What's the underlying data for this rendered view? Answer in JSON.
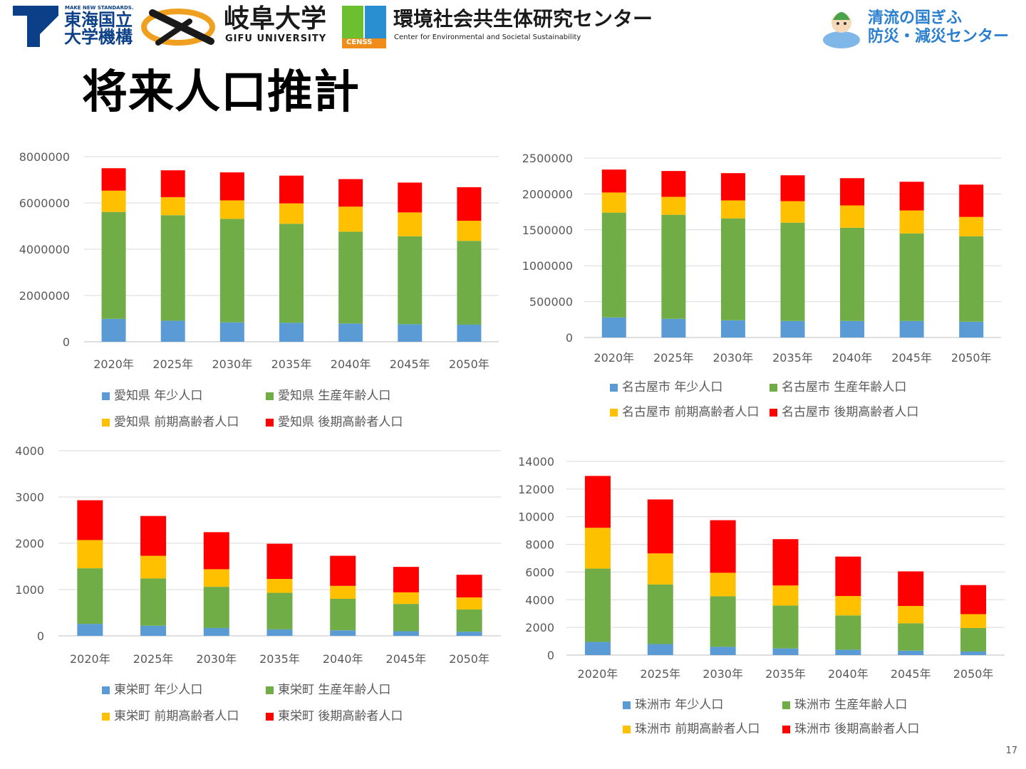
{
  "header": {
    "tokai_small": "MAKE NEW STANDARDS.",
    "tokai_line1": "東海国立",
    "tokai_line2": "大学機構",
    "gifu_jp": "岐阜大学",
    "gifu_en": "GIFU UNIVERSITY",
    "cens_badge": "CENSS",
    "cens_jp": "環境社会共生体研究センター",
    "cens_en": "Center for Environmental and Societal Sustainability",
    "center_line1": "清流の国ぎふ",
    "center_line2": "防災・減災センター"
  },
  "title": "将来人口推計",
  "page_number": "17",
  "colors": {
    "young": "#5B9BD5",
    "working": "#70AD47",
    "early_elderly": "#FFC000",
    "late_elderly": "#FF0000"
  },
  "chart_data": [
    {
      "type": "bar",
      "stacked": true,
      "categories": [
        "2020年",
        "2025年",
        "2030年",
        "2035年",
        "2040年",
        "2045年",
        "2050年"
      ],
      "ylim": [
        0,
        8000000
      ],
      "yticks": [
        "8000000",
        "6000000",
        "4000000",
        "2000000",
        "0"
      ],
      "legend_position": "bottom",
      "grid": true,
      "series": [
        {
          "name": "愛知県 年少人口",
          "color": "#5B9BD5",
          "values": [
            990000,
            910000,
            840000,
            820000,
            790000,
            760000,
            740000
          ]
        },
        {
          "name": "愛知県 生産年齢人口",
          "color": "#70AD47",
          "values": [
            4620000,
            4560000,
            4470000,
            4280000,
            3970000,
            3800000,
            3620000
          ]
        },
        {
          "name": "愛知県 前期高齢者人口",
          "color": "#FFC000",
          "values": [
            920000,
            780000,
            800000,
            880000,
            1080000,
            1030000,
            870000
          ]
        },
        {
          "name": "愛知県 後期高齢者人口",
          "color": "#FF0000",
          "values": [
            970000,
            1160000,
            1210000,
            1200000,
            1190000,
            1290000,
            1450000
          ]
        }
      ]
    },
    {
      "type": "bar",
      "stacked": true,
      "categories": [
        "2020年",
        "2025年",
        "2030年",
        "2035年",
        "2040年",
        "2045年",
        "2050年"
      ],
      "ylim": [
        0,
        2500000
      ],
      "yticks": [
        "2500000",
        "2000000",
        "1500000",
        "1000000",
        "500000",
        "0"
      ],
      "legend_position": "bottom",
      "grid": true,
      "series": [
        {
          "name": "名古屋市 年少人口",
          "color": "#5B9BD5",
          "values": [
            280000,
            260000,
            240000,
            230000,
            230000,
            230000,
            220000
          ]
        },
        {
          "name": "名古屋市 生産年齢人口",
          "color": "#70AD47",
          "values": [
            1460000,
            1450000,
            1420000,
            1370000,
            1300000,
            1220000,
            1190000
          ]
        },
        {
          "name": "名古屋市 前期高齢者人口",
          "color": "#FFC000",
          "values": [
            280000,
            250000,
            250000,
            300000,
            310000,
            320000,
            270000
          ]
        },
        {
          "name": "名古屋市 後期高齢者人口",
          "color": "#FF0000",
          "values": [
            320000,
            360000,
            380000,
            360000,
            380000,
            400000,
            450000
          ]
        }
      ]
    },
    {
      "type": "bar",
      "stacked": true,
      "categories": [
        "2020年",
        "2025年",
        "2030年",
        "2035年",
        "2040年",
        "2045年",
        "2050年"
      ],
      "ylim": [
        0,
        4000
      ],
      "yticks": [
        "4000",
        "3000",
        "2000",
        "1000",
        "0"
      ],
      "legend_position": "bottom",
      "grid": true,
      "series": [
        {
          "name": "東栄町 年少人口",
          "color": "#5B9BD5",
          "values": [
            260,
            220,
            170,
            140,
            120,
            100,
            90
          ]
        },
        {
          "name": "東栄町 生産年齢人口",
          "color": "#70AD47",
          "values": [
            1200,
            1020,
            890,
            790,
            680,
            590,
            480
          ]
        },
        {
          "name": "東栄町 前期高齢者人口",
          "color": "#FFC000",
          "values": [
            610,
            490,
            380,
            300,
            280,
            250,
            260
          ]
        },
        {
          "name": "東栄町 後期高齢者人口",
          "color": "#FF0000",
          "values": [
            860,
            860,
            800,
            760,
            650,
            550,
            490
          ]
        }
      ]
    },
    {
      "type": "bar",
      "stacked": true,
      "categories": [
        "2020年",
        "2025年",
        "2030年",
        "2035年",
        "2040年",
        "2045年",
        "2050年"
      ],
      "ylim": [
        0,
        14000
      ],
      "yticks": [
        "14000",
        "12000",
        "10000",
        "8000",
        "6000",
        "4000",
        "2000",
        "0"
      ],
      "legend_position": "bottom",
      "grid": true,
      "series": [
        {
          "name": "珠洲市 年少人口",
          "color": "#5B9BD5",
          "values": [
            950,
            800,
            600,
            480,
            390,
            320,
            260
          ]
        },
        {
          "name": "珠洲市 生産年齢人口",
          "color": "#70AD47",
          "values": [
            5300,
            4300,
            3650,
            3100,
            2480,
            1980,
            1700
          ]
        },
        {
          "name": "珠洲市 前期高齢者人口",
          "color": "#FFC000",
          "values": [
            2950,
            2250,
            1700,
            1450,
            1400,
            1250,
            1000
          ]
        },
        {
          "name": "珠洲市 後期高齢者人口",
          "color": "#FF0000",
          "values": [
            3750,
            3900,
            3800,
            3350,
            2850,
            2500,
            2100
          ]
        }
      ]
    }
  ]
}
